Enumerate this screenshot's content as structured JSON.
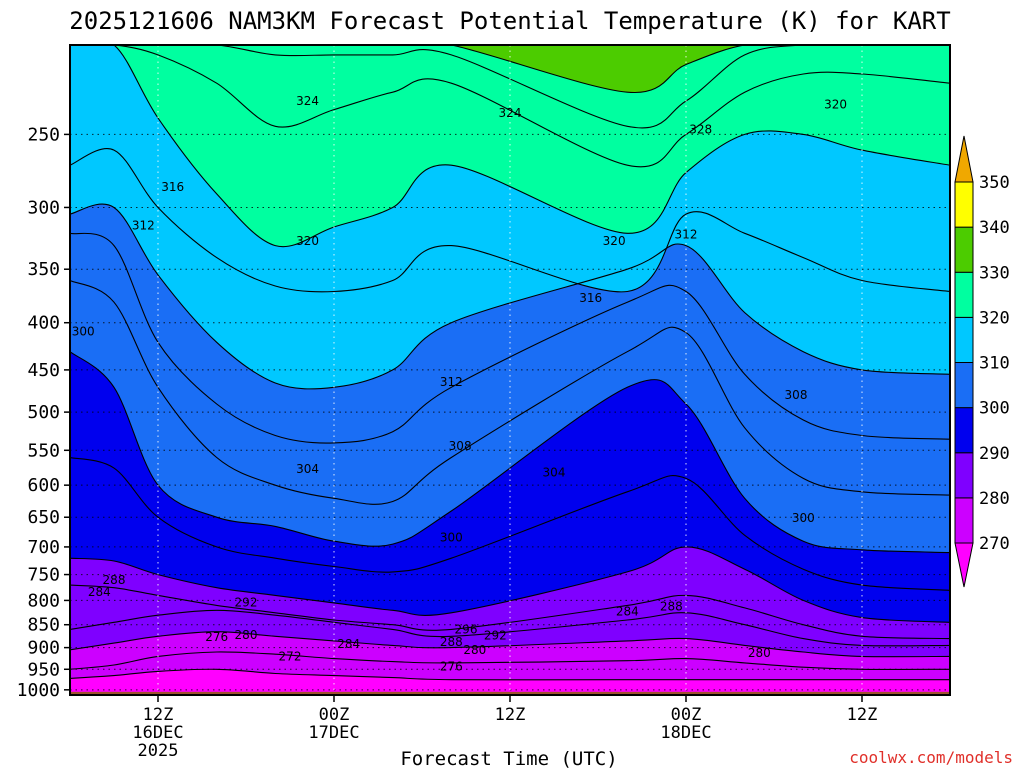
{
  "chart_data": {
    "type": "contour",
    "title": "2025121606 NAM3KM Forecast Potential Temperature (K) for KART",
    "xlabel": "Forecast Time (UTC)",
    "ylabel": "Pressure (hPa)",
    "credit": "coolwx.com/models",
    "x_ticks": [
      {
        "hour": 6,
        "labels": [
          "12Z",
          "16DEC",
          "2025"
        ]
      },
      {
        "hour": 18,
        "labels": [
          "00Z",
          "17DEC"
        ]
      },
      {
        "hour": 30,
        "labels": [
          "12Z"
        ]
      },
      {
        "hour": 42,
        "labels": [
          "00Z",
          "18DEC"
        ]
      },
      {
        "hour": 54,
        "labels": [
          "12Z"
        ]
      }
    ],
    "xlim_hours": [
      0,
      60
    ],
    "y_ticks": [
      "250",
      "300",
      "350",
      "400",
      "450",
      "500",
      "550",
      "600",
      "650",
      "700",
      "750",
      "800",
      "850",
      "900",
      "950",
      "1000"
    ],
    "y_tick_values": [
      250,
      300,
      350,
      400,
      450,
      500,
      550,
      600,
      650,
      700,
      750,
      800,
      850,
      900,
      950,
      1000
    ],
    "ylim_hpa": [
      1013,
      200
    ],
    "colorbar": {
      "levels": [
        270,
        280,
        290,
        300,
        310,
        320,
        330,
        340,
        350
      ],
      "labels": [
        "270",
        "280",
        "290",
        "300",
        "310",
        "320",
        "330",
        "340",
        "350"
      ],
      "colors": [
        "#ff00ff",
        "#cc00ff",
        "#7f00ff",
        "#0000ee",
        "#1a6ef5",
        "#00c8ff",
        "#00ffa0",
        "#4ccc00",
        "#ffff00",
        "#f0a800"
      ]
    },
    "isotherms": [
      {
        "theta": 272,
        "p": [
          972,
          965,
          955,
          950,
          960,
          965,
          970,
          975,
          975,
          975,
          975,
          975,
          975,
          975
        ]
      },
      {
        "theta": 276,
        "p": [
          950,
          940,
          920,
          910,
          915,
          925,
          932,
          935,
          930,
          925,
          935,
          945,
          950,
          950
        ]
      },
      {
        "theta": 280,
        "p": [
          905,
          890,
          875,
          865,
          875,
          885,
          895,
          900,
          885,
          880,
          895,
          910,
          920,
          920
        ]
      },
      {
        "theta": 284,
        "p": [
          860,
          845,
          830,
          820,
          830,
          845,
          860,
          875,
          840,
          825,
          850,
          880,
          895,
          895
        ]
      },
      {
        "theta": 288,
        "p": [
          770,
          775,
          790,
          810,
          825,
          840,
          850,
          860,
          810,
          790,
          815,
          850,
          875,
          880
        ]
      },
      {
        "theta": 292,
        "p": [
          720,
          725,
          750,
          775,
          790,
          805,
          820,
          825,
          745,
          700,
          740,
          800,
          835,
          845
        ]
      },
      {
        "theta": 296,
        "p": [
          560,
          575,
          650,
          700,
          720,
          735,
          745,
          720,
          610,
          590,
          680,
          740,
          770,
          780
        ]
      },
      {
        "theta": 300,
        "p": [
          430,
          470,
          600,
          650,
          665,
          690,
          695,
          640,
          470,
          490,
          620,
          690,
          705,
          710
        ]
      },
      {
        "theta": 304,
        "p": [
          360,
          380,
          470,
          560,
          600,
          620,
          625,
          560,
          430,
          410,
          520,
          590,
          610,
          615
        ]
      },
      {
        "theta": 308,
        "p": [
          320,
          330,
          420,
          490,
          530,
          540,
          525,
          470,
          380,
          370,
          455,
          510,
          530,
          535
        ]
      },
      {
        "theta": 312,
        "p": [
          305,
          300,
          355,
          420,
          465,
          470,
          450,
          400,
          350,
          330,
          390,
          430,
          450,
          455
        ]
      },
      {
        "theta": 316,
        "p": [
          270,
          260,
          300,
          340,
          365,
          370,
          360,
          330,
          370,
          305,
          320,
          340,
          360,
          370
        ]
      },
      {
        "theta": 320,
        "p": [
          200,
          200,
          240,
          290,
          330,
          315,
          300,
          270,
          320,
          275,
          250,
          250,
          260,
          270
        ]
      },
      {
        "theta": 324,
        "p": [
          200,
          200,
          205,
          220,
          245,
          235,
          225,
          220,
          270,
          250,
          225,
          215,
          215,
          220
        ]
      },
      {
        "theta": 328,
        "p": [
          200,
          200,
          200,
          200,
          205,
          205,
          205,
          205,
          245,
          230,
          205,
          200,
          200,
          200
        ]
      },
      {
        "theta": 332,
        "p": [
          200,
          200,
          200,
          200,
          200,
          200,
          200,
          200,
          225,
          210,
          200,
          200,
          200,
          200
        ]
      }
    ],
    "isotherm_hours": [
      0,
      3,
      6,
      10,
      14,
      18,
      22,
      26,
      38,
      42,
      46,
      50,
      54,
      60
    ],
    "contour_labels": [
      {
        "text": "324",
        "hour": 16.2,
        "p": 230
      },
      {
        "text": "324",
        "hour": 30.0,
        "p": 237
      },
      {
        "text": "328",
        "hour": 43.0,
        "p": 247
      },
      {
        "text": "320",
        "hour": 52.2,
        "p": 232
      },
      {
        "text": "316",
        "hour": 7.0,
        "p": 285
      },
      {
        "text": "312",
        "hour": 5.0,
        "p": 314
      },
      {
        "text": "320",
        "hour": 16.2,
        "p": 326
      },
      {
        "text": "320",
        "hour": 37.1,
        "p": 326
      },
      {
        "text": "312",
        "hour": 42.0,
        "p": 321
      },
      {
        "text": "316",
        "hour": 35.5,
        "p": 376
      },
      {
        "text": "300",
        "hour": 0.9,
        "p": 409
      },
      {
        "text": "312",
        "hour": 26.0,
        "p": 464
      },
      {
        "text": "308",
        "hour": 49.5,
        "p": 479
      },
      {
        "text": "308",
        "hour": 26.6,
        "p": 544
      },
      {
        "text": "304",
        "hour": 16.2,
        "p": 576
      },
      {
        "text": "304",
        "hour": 33.0,
        "p": 581
      },
      {
        "text": "300",
        "hour": 26.0,
        "p": 684
      },
      {
        "text": "300",
        "hour": 50.0,
        "p": 651
      },
      {
        "text": "288",
        "hour": 3.0,
        "p": 760
      },
      {
        "text": "284",
        "hour": 2.0,
        "p": 783
      },
      {
        "text": "292",
        "hour": 12.0,
        "p": 804
      },
      {
        "text": "276",
        "hour": 10.0,
        "p": 877
      },
      {
        "text": "280",
        "hour": 12.0,
        "p": 872
      },
      {
        "text": "272",
        "hour": 15.0,
        "p": 920
      },
      {
        "text": "284",
        "hour": 19.0,
        "p": 892
      },
      {
        "text": "296",
        "hour": 27.0,
        "p": 860
      },
      {
        "text": "292",
        "hour": 29.0,
        "p": 873
      },
      {
        "text": "288",
        "hour": 26.0,
        "p": 888
      },
      {
        "text": "280",
        "hour": 27.6,
        "p": 905
      },
      {
        "text": "276",
        "hour": 26.0,
        "p": 943
      },
      {
        "text": "284",
        "hour": 38.0,
        "p": 822
      },
      {
        "text": "288",
        "hour": 41.0,
        "p": 812
      },
      {
        "text": "280",
        "hour": 47.0,
        "p": 912
      }
    ]
  }
}
